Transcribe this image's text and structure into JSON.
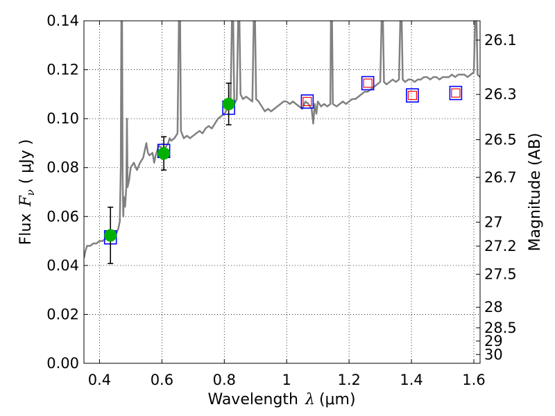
{
  "chart_data": {
    "type": "scatter",
    "xlabel_prefix": "Wavelength",
    "xlabel_symbol": "λ",
    "xlabel_unit": "(μm)",
    "ylabel_prefix": "Flux",
    "ylabel_symbol": "F",
    "ylabel_subscript": "ν",
    "ylabel_unit": "( μJy )",
    "y2label": "Magnitude (AB)",
    "xlim": [
      0.35,
      1.62
    ],
    "ylim": [
      0.0,
      0.14
    ],
    "grid": true,
    "xticks": [
      {
        "value": 0.4,
        "label": "0.4"
      },
      {
        "value": 0.6,
        "label": "0.6"
      },
      {
        "value": 0.8,
        "label": "0.8"
      },
      {
        "value": 1.0,
        "label": "1"
      },
      {
        "value": 1.2,
        "label": "1.2"
      },
      {
        "value": 1.4,
        "label": "1.4"
      },
      {
        "value": 1.6,
        "label": "1.6"
      }
    ],
    "yticks": [
      {
        "value": 0.0,
        "label": "0.00"
      },
      {
        "value": 0.02,
        "label": "0.02"
      },
      {
        "value": 0.04,
        "label": "0.04"
      },
      {
        "value": 0.06,
        "label": "0.06"
      },
      {
        "value": 0.08,
        "label": "0.08"
      },
      {
        "value": 0.1,
        "label": "0.10"
      },
      {
        "value": 0.12,
        "label": "0.12"
      },
      {
        "value": 0.14,
        "label": "0.14"
      }
    ],
    "y2ticks": [
      {
        "label": "26.1",
        "flux": 0.1321
      },
      {
        "label": "26.3",
        "flux": 0.1099
      },
      {
        "label": "26.5",
        "flux": 0.0914
      },
      {
        "label": "26.7",
        "flux": 0.076
      },
      {
        "label": "27",
        "flux": 0.0577
      },
      {
        "label": "27.2",
        "flux": 0.0479
      },
      {
        "label": "27.5",
        "flux": 0.0364
      },
      {
        "label": "28",
        "flux": 0.0229
      },
      {
        "label": "28.5",
        "flux": 0.0145
      },
      {
        "label": "29",
        "flux": 0.0091
      },
      {
        "label": "30",
        "flux": 0.0036
      }
    ],
    "model_spectrum": {
      "color": "#808080",
      "points": [
        [
          0.35,
          0.043
        ],
        [
          0.355,
          0.046
        ],
        [
          0.36,
          0.048
        ],
        [
          0.37,
          0.048
        ],
        [
          0.38,
          0.049
        ],
        [
          0.39,
          0.049
        ],
        [
          0.4,
          0.05
        ],
        [
          0.41,
          0.05
        ],
        [
          0.42,
          0.051
        ],
        [
          0.43,
          0.051
        ],
        [
          0.44,
          0.051
        ],
        [
          0.45,
          0.052
        ],
        [
          0.46,
          0.055
        ],
        [
          0.465,
          0.058
        ],
        [
          0.468,
          0.08
        ],
        [
          0.47,
          0.145
        ],
        [
          0.472,
          0.145
        ],
        [
          0.474,
          0.075
        ],
        [
          0.476,
          0.06
        ],
        [
          0.478,
          0.068
        ],
        [
          0.482,
          0.064
        ],
        [
          0.486,
          0.072
        ],
        [
          0.488,
          0.1
        ],
        [
          0.49,
          0.072
        ],
        [
          0.495,
          0.075
        ],
        [
          0.5,
          0.08
        ],
        [
          0.51,
          0.082
        ],
        [
          0.52,
          0.079
        ],
        [
          0.53,
          0.082
        ],
        [
          0.54,
          0.084
        ],
        [
          0.545,
          0.087
        ],
        [
          0.55,
          0.09
        ],
        [
          0.555,
          0.086
        ],
        [
          0.56,
          0.085
        ],
        [
          0.57,
          0.086
        ],
        [
          0.575,
          0.082
        ],
        [
          0.58,
          0.085
        ],
        [
          0.585,
          0.087
        ],
        [
          0.59,
          0.089
        ],
        [
          0.6,
          0.088
        ],
        [
          0.61,
          0.088
        ],
        [
          0.62,
          0.09
        ],
        [
          0.625,
          0.092
        ],
        [
          0.63,
          0.091
        ],
        [
          0.64,
          0.092
        ],
        [
          0.65,
          0.094
        ],
        [
          0.655,
          0.145
        ],
        [
          0.658,
          0.145
        ],
        [
          0.661,
          0.095
        ],
        [
          0.67,
          0.092
        ],
        [
          0.68,
          0.093
        ],
        [
          0.69,
          0.092
        ],
        [
          0.7,
          0.093
        ],
        [
          0.71,
          0.094
        ],
        [
          0.72,
          0.095
        ],
        [
          0.73,
          0.094
        ],
        [
          0.74,
          0.096
        ],
        [
          0.75,
          0.097
        ],
        [
          0.76,
          0.096
        ],
        [
          0.77,
          0.098
        ],
        [
          0.78,
          0.1
        ],
        [
          0.79,
          0.101
        ],
        [
          0.8,
          0.102
        ],
        [
          0.81,
          0.104
        ],
        [
          0.82,
          0.106
        ],
        [
          0.825,
          0.145
        ],
        [
          0.828,
          0.145
        ],
        [
          0.832,
          0.106
        ],
        [
          0.84,
          0.108
        ],
        [
          0.845,
          0.145
        ],
        [
          0.848,
          0.145
        ],
        [
          0.852,
          0.11
        ],
        [
          0.86,
          0.108
        ],
        [
          0.87,
          0.109
        ],
        [
          0.88,
          0.108
        ],
        [
          0.89,
          0.107
        ],
        [
          0.895,
          0.145
        ],
        [
          0.898,
          0.145
        ],
        [
          0.902,
          0.108
        ],
        [
          0.91,
          0.107
        ],
        [
          0.92,
          0.105
        ],
        [
          0.93,
          0.103
        ],
        [
          0.94,
          0.104
        ],
        [
          0.95,
          0.103
        ],
        [
          0.96,
          0.104
        ],
        [
          0.97,
          0.105
        ],
        [
          0.98,
          0.106
        ],
        [
          0.99,
          0.107
        ],
        [
          1.0,
          0.107
        ],
        [
          1.01,
          0.106
        ],
        [
          1.02,
          0.107
        ],
        [
          1.03,
          0.106
        ],
        [
          1.04,
          0.105
        ],
        [
          1.05,
          0.104
        ],
        [
          1.06,
          0.107
        ],
        [
          1.07,
          0.106
        ],
        [
          1.08,
          0.104
        ],
        [
          1.085,
          0.098
        ],
        [
          1.09,
          0.106
        ],
        [
          1.095,
          0.102
        ],
        [
          1.1,
          0.107
        ],
        [
          1.11,
          0.105
        ],
        [
          1.12,
          0.106
        ],
        [
          1.13,
          0.105
        ],
        [
          1.14,
          0.106
        ],
        [
          1.142,
          0.145
        ],
        [
          1.145,
          0.145
        ],
        [
          1.148,
          0.106
        ],
        [
          1.16,
          0.105
        ],
        [
          1.17,
          0.106
        ],
        [
          1.18,
          0.107
        ],
        [
          1.19,
          0.106
        ],
        [
          1.2,
          0.107
        ],
        [
          1.21,
          0.108
        ],
        [
          1.22,
          0.108
        ],
        [
          1.23,
          0.109
        ],
        [
          1.24,
          0.11
        ],
        [
          1.25,
          0.111
        ],
        [
          1.26,
          0.111
        ],
        [
          1.27,
          0.112
        ],
        [
          1.28,
          0.113
        ],
        [
          1.29,
          0.114
        ],
        [
          1.3,
          0.115
        ],
        [
          1.305,
          0.145
        ],
        [
          1.308,
          0.145
        ],
        [
          1.312,
          0.115
        ],
        [
          1.32,
          0.114
        ],
        [
          1.33,
          0.115
        ],
        [
          1.34,
          0.116
        ],
        [
          1.35,
          0.115
        ],
        [
          1.36,
          0.116
        ],
        [
          1.365,
          0.145
        ],
        [
          1.368,
          0.145
        ],
        [
          1.372,
          0.116
        ],
        [
          1.38,
          0.115
        ],
        [
          1.39,
          0.116
        ],
        [
          1.4,
          0.116
        ],
        [
          1.41,
          0.115
        ],
        [
          1.42,
          0.116
        ],
        [
          1.43,
          0.116
        ],
        [
          1.44,
          0.117
        ],
        [
          1.45,
          0.117
        ],
        [
          1.46,
          0.116
        ],
        [
          1.47,
          0.117
        ],
        [
          1.48,
          0.117
        ],
        [
          1.49,
          0.116
        ],
        [
          1.5,
          0.117
        ],
        [
          1.51,
          0.117
        ],
        [
          1.52,
          0.117
        ],
        [
          1.53,
          0.118
        ],
        [
          1.54,
          0.117
        ],
        [
          1.55,
          0.118
        ],
        [
          1.56,
          0.118
        ],
        [
          1.57,
          0.118
        ],
        [
          1.58,
          0.117
        ],
        [
          1.59,
          0.118
        ],
        [
          1.6,
          0.119
        ],
        [
          1.605,
          0.145
        ],
        [
          1.608,
          0.145
        ],
        [
          1.612,
          0.118
        ],
        [
          1.62,
          0.117
        ]
      ]
    },
    "observed": [
      {
        "x": 0.435,
        "y": 0.0523,
        "yerr": 0.0115
      },
      {
        "x": 0.606,
        "y": 0.0858,
        "yerr": 0.0068
      },
      {
        "x": 0.814,
        "y": 0.106,
        "yerr": 0.0085
      }
    ],
    "model_photometry": [
      {
        "x": 0.435,
        "y": 0.0515
      },
      {
        "x": 0.606,
        "y": 0.0868
      },
      {
        "x": 0.814,
        "y": 0.1045
      },
      {
        "x": 1.066,
        "y": 0.107
      },
      {
        "x": 1.26,
        "y": 0.1145
      },
      {
        "x": 1.403,
        "y": 0.1095
      },
      {
        "x": 1.542,
        "y": 0.1105
      }
    ],
    "open_markers": [
      {
        "x": 1.066,
        "y": 0.107
      },
      {
        "x": 1.26,
        "y": 0.1145
      },
      {
        "x": 1.403,
        "y": 0.1095
      },
      {
        "x": 1.542,
        "y": 0.1105
      }
    ],
    "colors": {
      "observed": "#00b000",
      "model_photometry": "#0000ff",
      "open_markers": "#ff0000",
      "errorbar": "#000000",
      "grid": "#000000"
    }
  }
}
